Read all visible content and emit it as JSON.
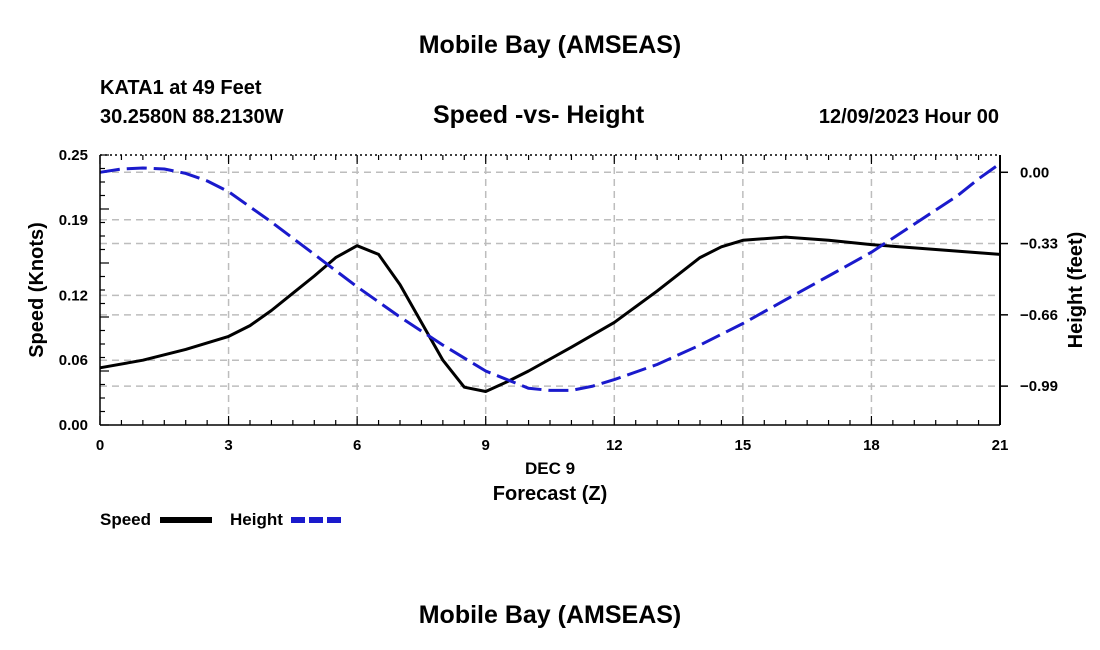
{
  "header": {
    "title": "Mobile Bay (AMSEAS)",
    "station": "KATA1 at 49 Feet",
    "coordinates": "30.2580N  88.2130W",
    "subtitle": "Speed -vs- Height",
    "datetime": "12/09/2023 Hour 00"
  },
  "footer": {
    "title": "Mobile Bay (AMSEAS)"
  },
  "legend": {
    "speed_label": "Speed",
    "height_label": "Height"
  },
  "colors": {
    "speed": "#000000",
    "height": "#1a1acc",
    "grid": "#bdbdbd"
  },
  "chart_data": {
    "type": "line",
    "xlabel": "Forecast (Z)",
    "xlabel_date": "DEC 9",
    "ylabel": "Speed (Knots)",
    "y2label": "Height (feet)",
    "xlim": [
      0,
      21
    ],
    "ylim": [
      0,
      0.25
    ],
    "y2lim": [
      -1.17,
      0.08
    ],
    "x_ticks": [
      "0",
      "3",
      "6",
      "9",
      "12",
      "15",
      "18",
      "21"
    ],
    "y_ticks": [
      "0.00",
      "0.06",
      "0.12",
      "0.19",
      "0.25"
    ],
    "y2_ticks": [
      "0.00",
      "−0.33",
      "−0.66",
      "−0.99"
    ],
    "grid": true,
    "legend_position": "bottom-left",
    "series": [
      {
        "name": "Speed",
        "axis": "left",
        "style": "solid",
        "x": [
          0,
          1,
          2,
          3,
          3.5,
          4,
          4.5,
          5,
          5.5,
          6,
          6.5,
          7,
          7.5,
          8,
          8.5,
          9,
          9.5,
          10,
          11,
          12,
          13,
          14,
          14.5,
          15,
          16,
          17,
          18,
          19,
          20,
          21
        ],
        "y": [
          0.053,
          0.06,
          0.07,
          0.082,
          0.092,
          0.106,
          0.122,
          0.138,
          0.155,
          0.166,
          0.158,
          0.13,
          0.095,
          0.06,
          0.035,
          0.031,
          0.04,
          0.05,
          0.072,
          0.095,
          0.124,
          0.155,
          0.165,
          0.171,
          0.174,
          0.171,
          0.167,
          0.164,
          0.161,
          0.158
        ]
      },
      {
        "name": "Height",
        "axis": "right",
        "style": "dashed",
        "x": [
          0,
          0.5,
          1,
          1.5,
          2,
          2.5,
          3,
          4,
          5,
          6,
          7,
          8,
          9,
          10,
          10.5,
          11,
          11.5,
          12,
          13,
          14,
          15,
          16,
          17,
          18,
          19,
          20,
          20.5,
          21
        ],
        "y": [
          0.0,
          0.015,
          0.02,
          0.015,
          -0.005,
          -0.04,
          -0.09,
          -0.23,
          -0.38,
          -0.53,
          -0.67,
          -0.8,
          -0.92,
          -1.0,
          -1.01,
          -1.01,
          -0.99,
          -0.96,
          -0.89,
          -0.8,
          -0.7,
          -0.59,
          -0.48,
          -0.37,
          -0.24,
          -0.11,
          -0.03,
          0.04
        ]
      }
    ]
  }
}
